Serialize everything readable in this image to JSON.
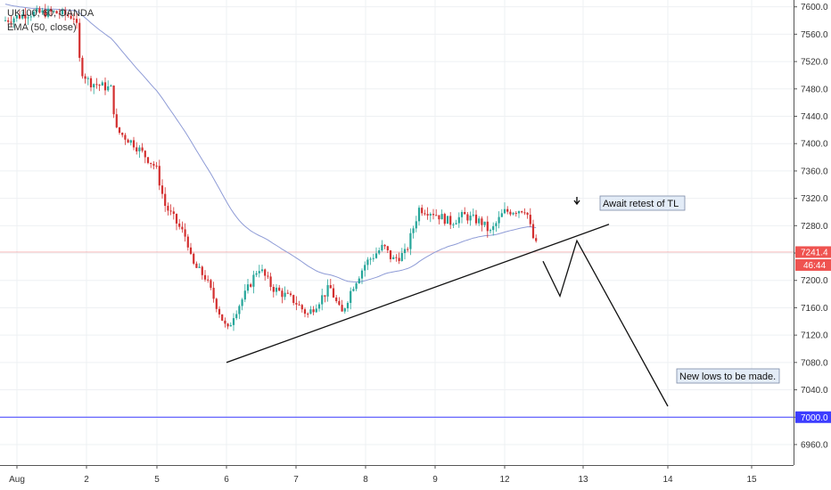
{
  "chart_data": {
    "type": "candlestick",
    "legend": {
      "line1": "UK100, 60, OANDA",
      "line2": "EMA (50, close)"
    },
    "y_axis": {
      "ylim": [
        6930,
        7610
      ],
      "ticks": [
        7600,
        7560,
        7520,
        7480,
        7440,
        7400,
        7360,
        7320,
        7280,
        7240,
        7200,
        7160,
        7120,
        7080,
        7040,
        7000,
        6960
      ],
      "tick_labels": [
        "7600.0",
        "7560.0",
        "7520.0",
        "7480.0",
        "7440.0",
        "7400.0",
        "7360.0",
        "7320.0",
        "7280.0",
        "7240.0",
        "7200.0",
        "7160.0",
        "7120.0",
        "7080.0",
        "7040.0",
        "7000.0",
        "6960.0"
      ]
    },
    "x_axis": {
      "labels": [
        "Aug",
        "2",
        "5",
        "6",
        "7",
        "8",
        "9",
        "12",
        "13",
        "14",
        "15"
      ]
    },
    "price_line": {
      "value": 7241.4,
      "label": "7241.4",
      "color": "#ef5350"
    },
    "countdown": {
      "label": "46:44",
      "color": "#ef5350"
    },
    "level_line": {
      "value": 7000.0,
      "label": "7000.0",
      "color": "#3d3dff"
    },
    "ema_color": "#8e9bd6",
    "up_color": "#26a69a",
    "down_color": "#d32f2f",
    "annotations": {
      "retest": "Await retest of TL",
      "new_lows": "New lows to be made."
    },
    "trendline": {
      "from": {
        "x": "6",
        "y": 7080
      },
      "to": {
        "x": "13",
        "y": 7282
      }
    },
    "projection_path_y": [
      7228,
      7177,
      7258,
      7016
    ]
  }
}
